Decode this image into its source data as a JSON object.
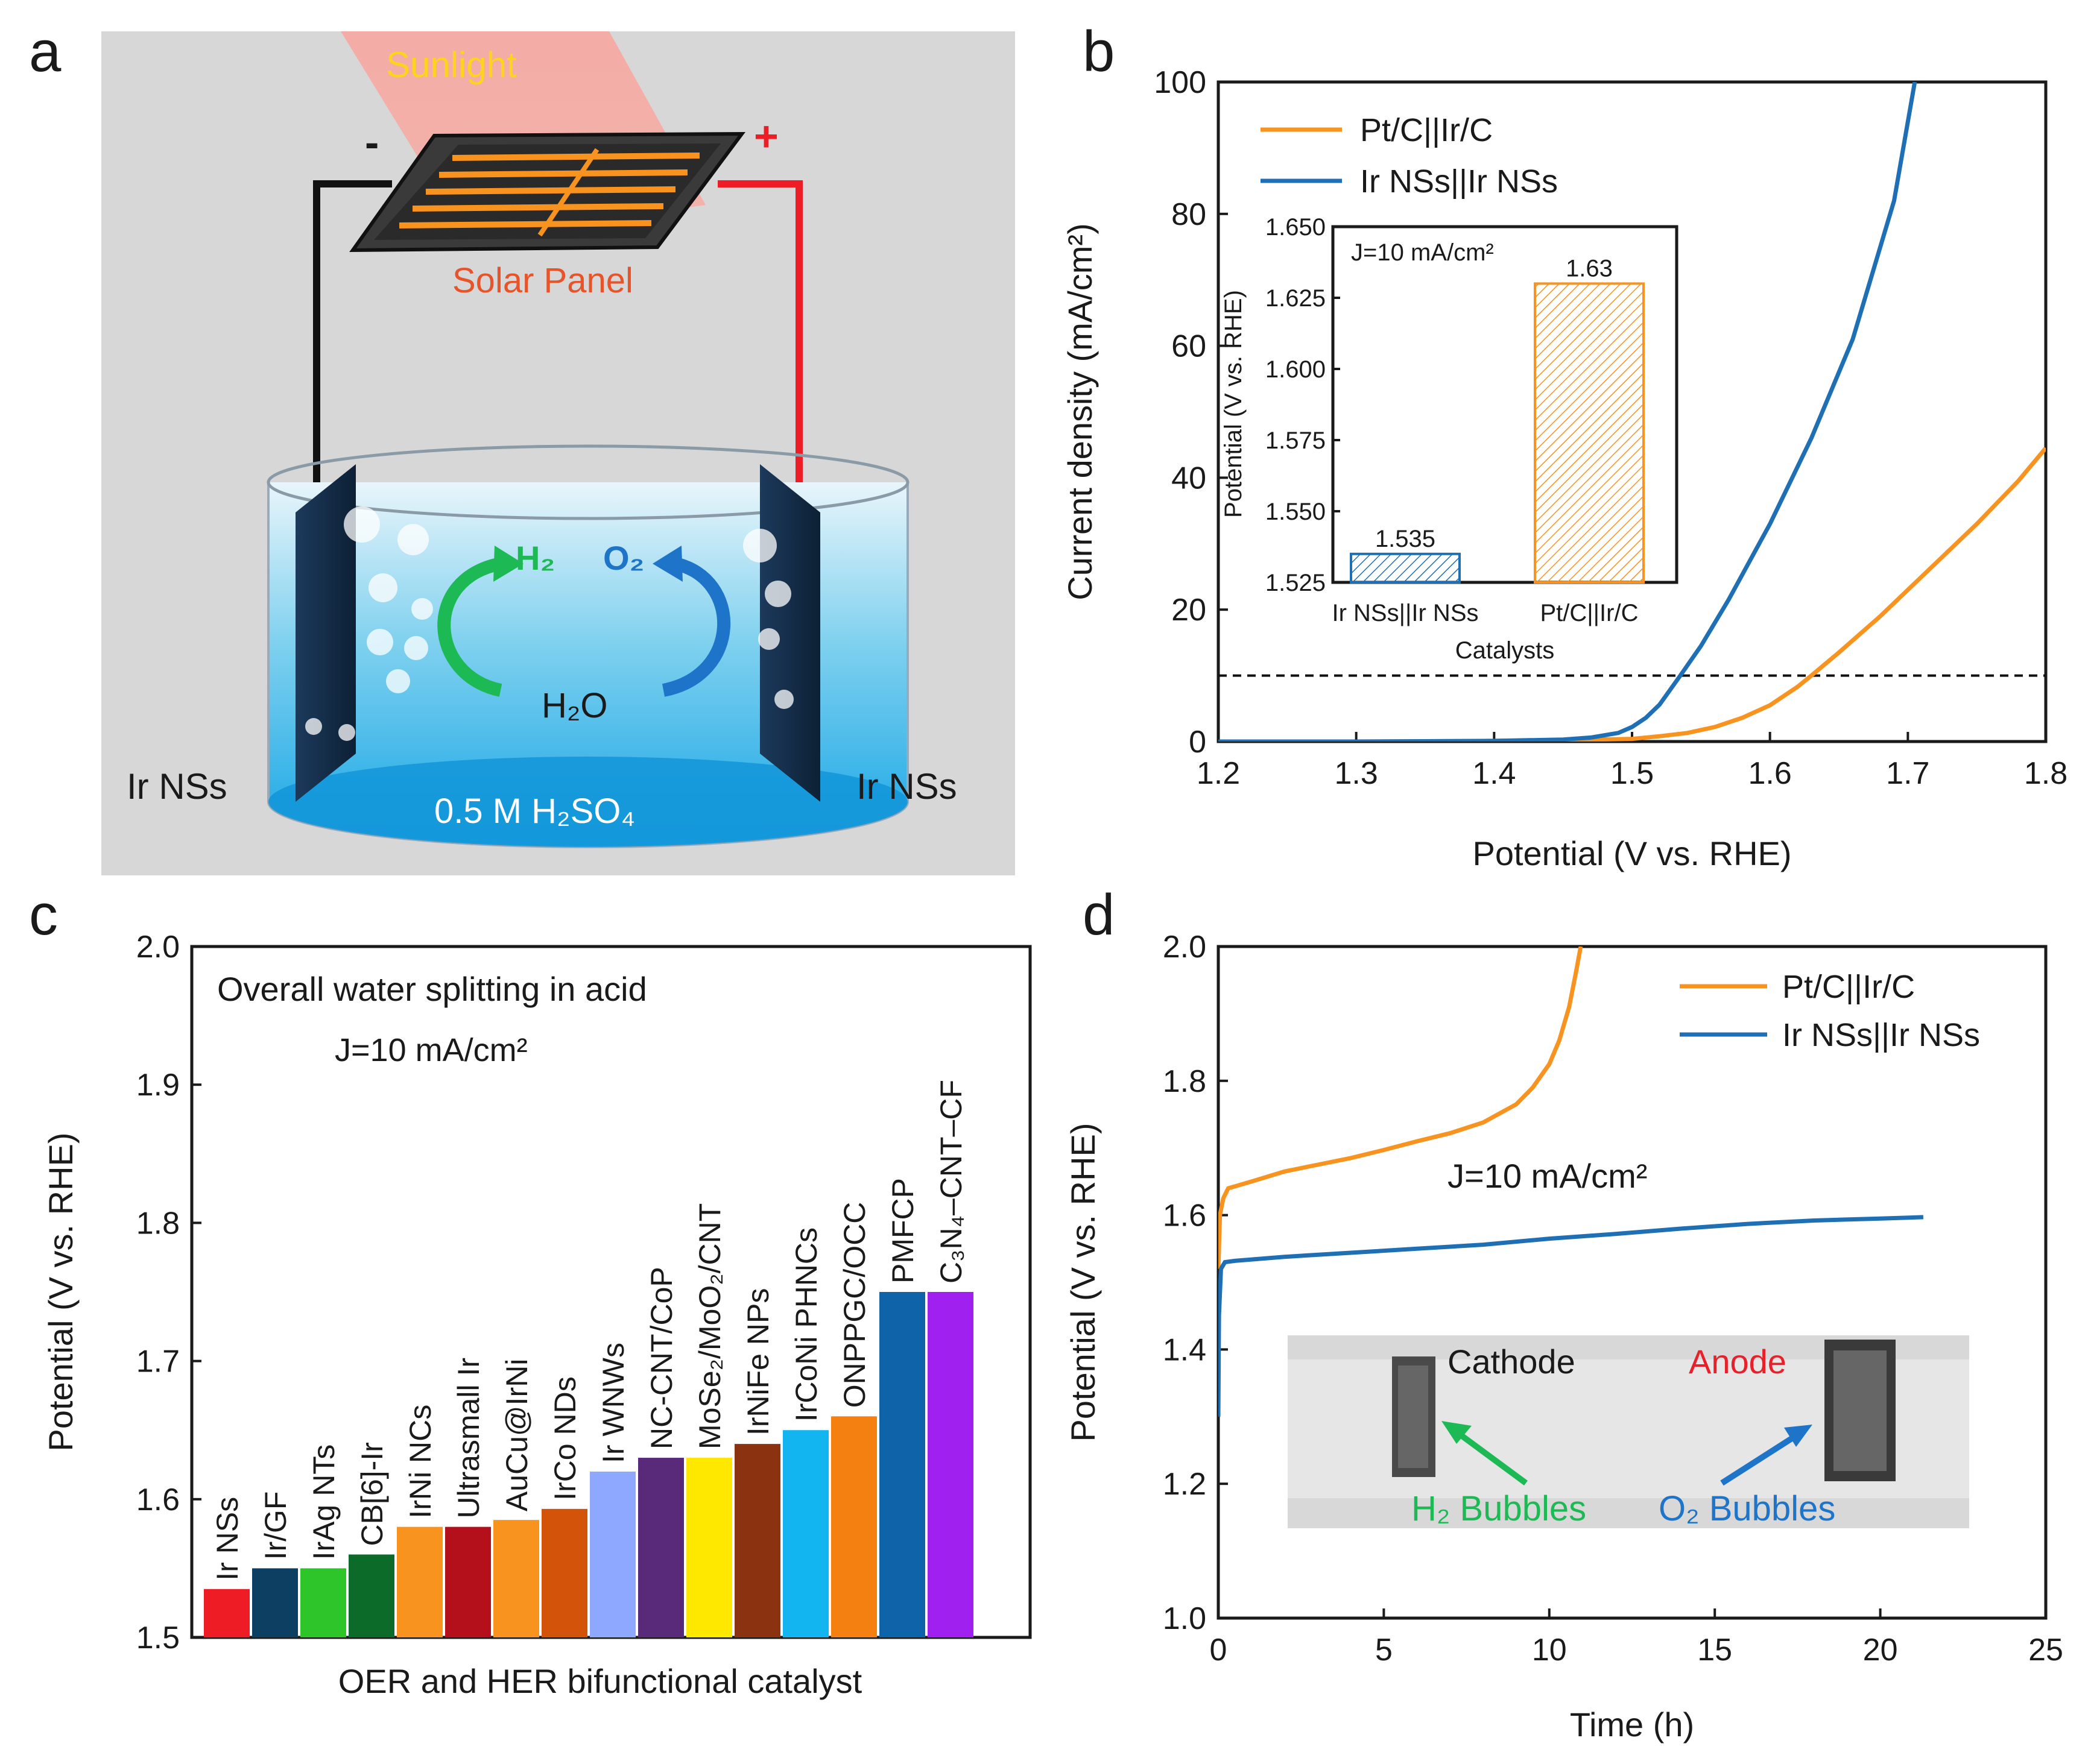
{
  "panels": {
    "a": {
      "label": "a",
      "sunlight": "Sunlight",
      "minus": "-",
      "plus": "+",
      "solar_panel": "Solar Panel",
      "h2": "H₂",
      "o2": "O₂",
      "h2o": "H₂O",
      "left_electrode": "Ir NSs",
      "right_electrode": "Ir NSs",
      "electrolyte": "0.5 M H₂SO₄"
    },
    "b": {
      "label": "b"
    },
    "c": {
      "label": "c"
    },
    "d": {
      "label": "d",
      "photo_cathode": "Cathode",
      "photo_anode": "Anode",
      "photo_h2": "H₂ Bubbles",
      "photo_o2": "O₂ Bubbles"
    }
  },
  "colors": {
    "orange": "#f7931e",
    "blue": "#1f6fb5",
    "h2_green": "#1db954",
    "o2_blue": "#1e74c8",
    "anode_red": "#e8202a",
    "solar_text": "#e8542a",
    "sun_text": "#ffd21f"
  },
  "chart_data": [
    {
      "id": "b",
      "type": "line",
      "xlabel": "Potential (V vs. RHE)",
      "ylabel": "Current density (mA/cm²)",
      "xlim": [
        1.2,
        1.8
      ],
      "ylim": [
        0,
        100
      ],
      "xticks": [
        1.2,
        1.3,
        1.4,
        1.5,
        1.6,
        1.7,
        1.8
      ],
      "yticks": [
        0,
        20,
        40,
        60,
        80,
        100
      ],
      "reference_line_y": 10,
      "legend_placement": "top-left",
      "series": [
        {
          "name": "Pt/C||Ir/C",
          "color": "#f7931e",
          "x": [
            1.2,
            1.3,
            1.4,
            1.45,
            1.5,
            1.52,
            1.54,
            1.56,
            1.58,
            1.6,
            1.62,
            1.63,
            1.65,
            1.68,
            1.7,
            1.72,
            1.75,
            1.78,
            1.8
          ],
          "y": [
            0,
            0,
            0.1,
            0.2,
            0.4,
            0.8,
            1.3,
            2.2,
            3.6,
            5.5,
            8.3,
            10,
            13.5,
            19,
            23,
            27,
            33,
            39.5,
            44.5
          ]
        },
        {
          "name": "Ir NSs||Ir NSs",
          "color": "#1f6fb5",
          "x": [
            1.2,
            1.3,
            1.4,
            1.45,
            1.47,
            1.49,
            1.5,
            1.51,
            1.52,
            1.535,
            1.55,
            1.57,
            1.6,
            1.63,
            1.66,
            1.69,
            1.705
          ],
          "y": [
            0,
            0,
            0.1,
            0.3,
            0.6,
            1.3,
            2.2,
            3.6,
            5.6,
            10,
            14.5,
            21.5,
            33,
            46,
            61,
            82,
            100
          ]
        }
      ],
      "inset": {
        "type": "bar",
        "annotation": "J=10 mA/cm²",
        "xlabel": "Catalysts",
        "ylabel": "Potential (V vs. RHE)",
        "ylim": [
          1.525,
          1.65
        ],
        "yticks": [
          "1.525",
          "1.550",
          "1.575",
          "1.600",
          "1.625",
          "1.650"
        ],
        "categories": [
          "Ir NSs||Ir NSs",
          "Pt/C||Ir/C"
        ],
        "values": [
          1.535,
          1.63
        ],
        "value_labels": [
          "1.535",
          "1.63"
        ],
        "colors": [
          "#1f6fb5",
          "#f7931e"
        ]
      }
    },
    {
      "id": "c",
      "type": "bar",
      "title": "Overall water splitting in acid",
      "annotation": "J=10 mA/cm²",
      "xlabel": "OER and HER bifunctional catalyst",
      "ylabel": "Potential (V vs. RHE)",
      "ylim": [
        1.5,
        2.0
      ],
      "yticks": [
        "1.5",
        "1.6",
        "1.7",
        "1.8",
        "1.9",
        "2.0"
      ],
      "categories": [
        "Ir NSs",
        "Ir/GF",
        "IrAg NTs",
        "CB[6]-Ir",
        "IrNi NCs",
        "Ultrasmall Ir",
        "AuCu@IrNi",
        "IrCo NDs",
        "Ir WNWs",
        "NC-CNT/CoP",
        "MoSe₂/MoO₂/CNT",
        "IrNiFe NPs",
        "IrCoNi PHNCs",
        "ONPPGC/OCC",
        "PMFCP",
        "C₃N₄–CNT–CF"
      ],
      "values": [
        1.535,
        1.55,
        1.55,
        1.56,
        1.58,
        1.58,
        1.585,
        1.593,
        1.62,
        1.63,
        1.63,
        1.64,
        1.65,
        1.66,
        1.75,
        1.75
      ],
      "colors": [
        "#ee1c25",
        "#0d3f63",
        "#2ec52a",
        "#0d6b2a",
        "#f7931e",
        "#b3101b",
        "#f7931e",
        "#d4530a",
        "#8ea8ff",
        "#5a2a7a",
        "#ffe800",
        "#8b3210",
        "#12b5f0",
        "#f58012",
        "#0f63a8",
        "#a020f0"
      ]
    },
    {
      "id": "d",
      "type": "line",
      "xlabel": "Time (h)",
      "ylabel": "Potential (V vs. RHE)",
      "annotation": "J=10 mA/cm²",
      "xlim": [
        0,
        25
      ],
      "ylim": [
        1.0,
        2.0
      ],
      "xticks": [
        "0",
        "5",
        "10",
        "15",
        "20",
        "25"
      ],
      "yticks": [
        "1.0",
        "1.2",
        "1.4",
        "1.6",
        "1.8",
        "2.0"
      ],
      "legend_placement": "top-right",
      "series": [
        {
          "name": "Pt/C||Ir/C",
          "color": "#f7931e",
          "x": [
            0,
            0.05,
            0.15,
            0.3,
            1,
            2,
            3,
            4,
            5,
            6,
            7,
            8,
            9,
            9.5,
            10,
            10.3,
            10.6,
            10.8,
            10.95
          ],
          "y": [
            1.52,
            1.6,
            1.625,
            1.64,
            1.65,
            1.665,
            1.675,
            1.685,
            1.697,
            1.71,
            1.722,
            1.738,
            1.765,
            1.79,
            1.825,
            1.86,
            1.91,
            1.96,
            2.0
          ]
        },
        {
          "name": "Ir NSs||Ir NSs",
          "color": "#1f6fb5",
          "x": [
            0,
            0.02,
            0.08,
            0.2,
            0.5,
            2,
            4,
            6,
            8,
            10,
            12,
            14,
            16,
            18,
            20,
            21.3
          ],
          "y": [
            1.3,
            1.45,
            1.52,
            1.53,
            1.532,
            1.538,
            1.544,
            1.55,
            1.556,
            1.565,
            1.572,
            1.58,
            1.587,
            1.592,
            1.595,
            1.597
          ]
        }
      ]
    }
  ]
}
